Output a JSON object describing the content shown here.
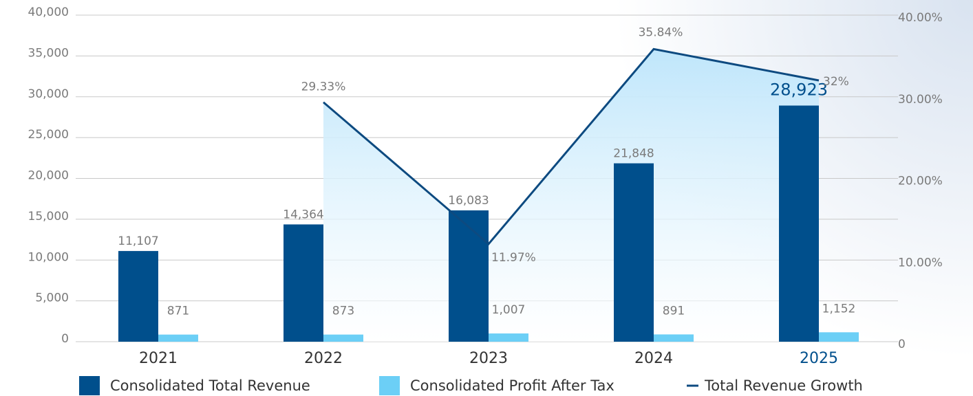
{
  "chart_data": {
    "type": "bar",
    "categories": [
      "2021",
      "2022",
      "2023",
      "2024",
      "2025"
    ],
    "highlight": "2025",
    "series": [
      {
        "name": "Consolidated Total Revenue",
        "color": "#004f8c",
        "type": "bar",
        "values": [
          11107,
          14364,
          16083,
          21848,
          28923
        ],
        "value_labels": [
          "11,107",
          "14,364",
          "16,083",
          "21,848",
          "28,923"
        ]
      },
      {
        "name": "Consolidated Profit After Tax",
        "color": "#6ccff6",
        "type": "bar",
        "values": [
          871,
          873,
          1007,
          891,
          1152
        ],
        "value_labels": [
          "871",
          "873",
          "1,007",
          "891",
          "1,152"
        ]
      },
      {
        "name": "Total Revenue Growth",
        "color": "#0d4a80",
        "type": "line",
        "axis": "y2",
        "values": [
          null,
          29.33,
          11.97,
          35.84,
          32
        ],
        "value_labels": [
          null,
          "29.33%",
          "11.97%",
          "35.84%",
          "32%"
        ]
      }
    ],
    "ylim": [
      0,
      40000
    ],
    "yticks": [
      0,
      {
        "value": 5000,
        "label": "5,000"
      },
      {
        "value": 10000,
        "label": "10,000"
      },
      {
        "value": 15000,
        "label": "15,000"
      },
      {
        "value": 20000,
        "label": "20,000"
      },
      {
        "value": 25000,
        "label": "25,000"
      },
      {
        "value": 30000,
        "label": "30,000"
      },
      {
        "value": 35000,
        "label": "35,000"
      },
      {
        "value": 40000,
        "label": "40,000"
      }
    ],
    "y2lim": [
      0,
      40
    ],
    "y2ticks": [
      0,
      {
        "value": 10,
        "label": "10.00%"
      },
      {
        "value": 20,
        "label": "20.00%"
      },
      {
        "value": 30,
        "label": "30.00%"
      },
      {
        "value": 40,
        "label": "40.00%"
      }
    ],
    "grid": true
  }
}
